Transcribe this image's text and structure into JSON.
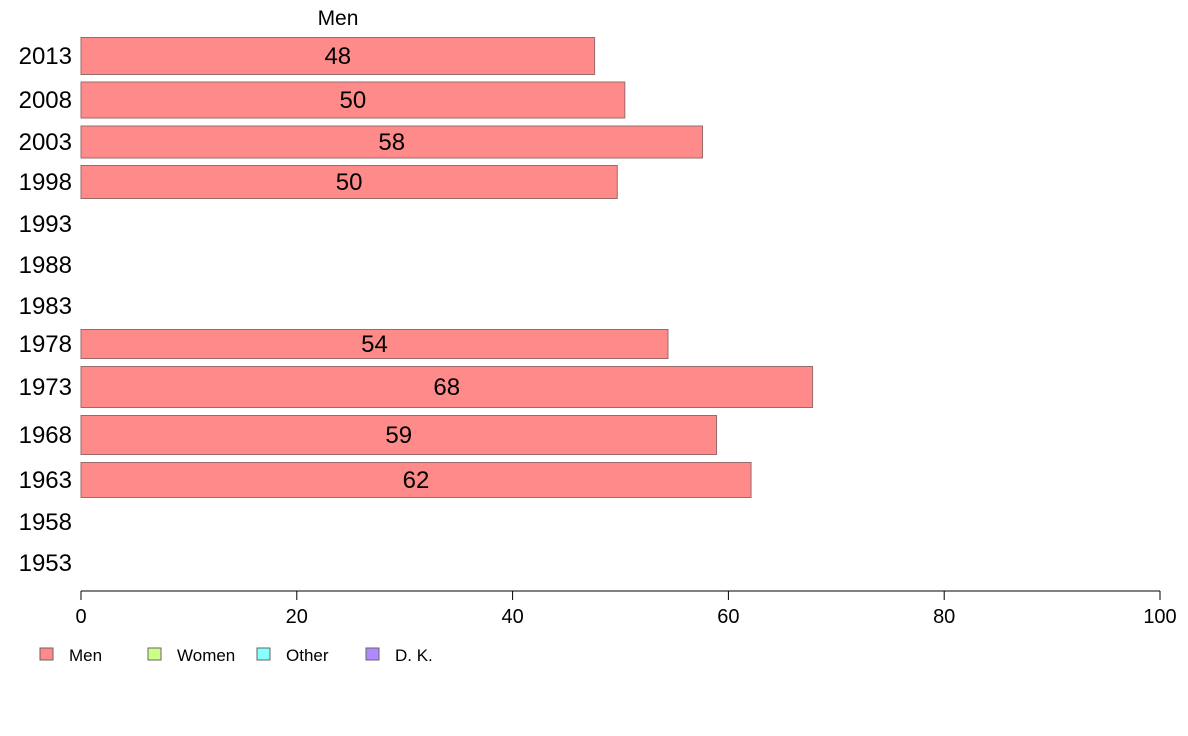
{
  "chart_data": {
    "type": "bar",
    "orientation": "horizontal",
    "title": "",
    "series_header": "Men",
    "xlabel": "",
    "ylabel": "",
    "xlim": [
      0,
      100
    ],
    "x_ticks": [
      0,
      20,
      40,
      60,
      80,
      100
    ],
    "categories": [
      "2013",
      "2008",
      "2003",
      "1998",
      "1993",
      "1988",
      "1983",
      "1978",
      "1973",
      "1968",
      "1963",
      "1958",
      "1953"
    ],
    "series": [
      {
        "name": "Men",
        "color": "#ff8a8a",
        "values": [
          47.6,
          50.4,
          57.6,
          49.7,
          null,
          null,
          null,
          54.4,
          67.8,
          58.9,
          62.1,
          null,
          null
        ],
        "labels": [
          "48",
          "50",
          "58",
          "50",
          "",
          "",
          "",
          "54",
          "68",
          "59",
          "62",
          "",
          ""
        ]
      }
    ],
    "grid": false,
    "legend": {
      "position": "bottom-left",
      "entries": [
        {
          "label": "Men",
          "color": "#ff8a8a"
        },
        {
          "label": "Women",
          "color": "#ccff88"
        },
        {
          "label": "Other",
          "color": "#88ffff"
        },
        {
          "label": "D. K.",
          "color": "#b088ff"
        }
      ]
    }
  }
}
